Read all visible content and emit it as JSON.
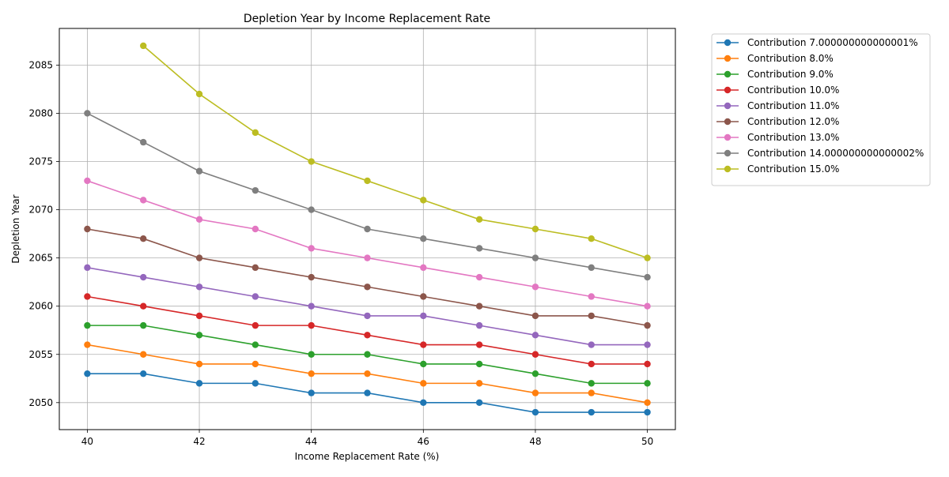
{
  "chart_data": {
    "type": "line",
    "title": "Depletion Year by Income Replacement Rate",
    "xlabel": "Income Replacement Rate (%)",
    "ylabel": "Depletion Year",
    "xlim": [
      39.5,
      50.5
    ],
    "ylim": [
      2047.2,
      2088.8
    ],
    "xticks": [
      40,
      42,
      44,
      46,
      48,
      50
    ],
    "yticks": [
      2050,
      2055,
      2060,
      2065,
      2070,
      2075,
      2080,
      2085
    ],
    "grid": true,
    "legend_position": "outside-top-right",
    "x": [
      40,
      41,
      42,
      43,
      44,
      45,
      46,
      47,
      48,
      49,
      50
    ],
    "series": [
      {
        "name": "Contribution 7.000000000000001%",
        "color": "#1f77b4",
        "values": [
          2053,
          2053,
          2052,
          2052,
          2051,
          2051,
          2050,
          2050,
          2049,
          2049,
          2049
        ]
      },
      {
        "name": "Contribution 8.0%",
        "color": "#ff7f0e",
        "values": [
          2056,
          2055,
          2054,
          2054,
          2053,
          2053,
          2052,
          2052,
          2051,
          2051,
          2050
        ]
      },
      {
        "name": "Contribution 9.0%",
        "color": "#2ca02c",
        "values": [
          2058,
          2058,
          2057,
          2056,
          2055,
          2055,
          2054,
          2054,
          2053,
          2052,
          2052
        ]
      },
      {
        "name": "Contribution 10.0%",
        "color": "#d62728",
        "values": [
          2061,
          2060,
          2059,
          2058,
          2058,
          2057,
          2056,
          2056,
          2055,
          2054,
          2054
        ]
      },
      {
        "name": "Contribution 11.0%",
        "color": "#9467bd",
        "values": [
          2064,
          2063,
          2062,
          2061,
          2060,
          2059,
          2059,
          2058,
          2057,
          2056,
          2056
        ]
      },
      {
        "name": "Contribution 12.0%",
        "color": "#8c564b",
        "values": [
          2068,
          2067,
          2065,
          2064,
          2063,
          2062,
          2061,
          2060,
          2059,
          2059,
          2058
        ]
      },
      {
        "name": "Contribution 13.0%",
        "color": "#e377c2",
        "values": [
          2073,
          2071,
          2069,
          2068,
          2066,
          2065,
          2064,
          2063,
          2062,
          2061,
          2060
        ]
      },
      {
        "name": "Contribution 14.000000000000002%",
        "color": "#7f7f7f",
        "values": [
          2080,
          2077,
          2074,
          2072,
          2070,
          2068,
          2067,
          2066,
          2065,
          2064,
          2063
        ]
      },
      {
        "name": "Contribution 15.0%",
        "color": "#bcbd22",
        "values": [
          null,
          2087,
          2082,
          2078,
          2075,
          2073,
          2071,
          2069,
          2068,
          2067,
          2065
        ]
      }
    ]
  }
}
